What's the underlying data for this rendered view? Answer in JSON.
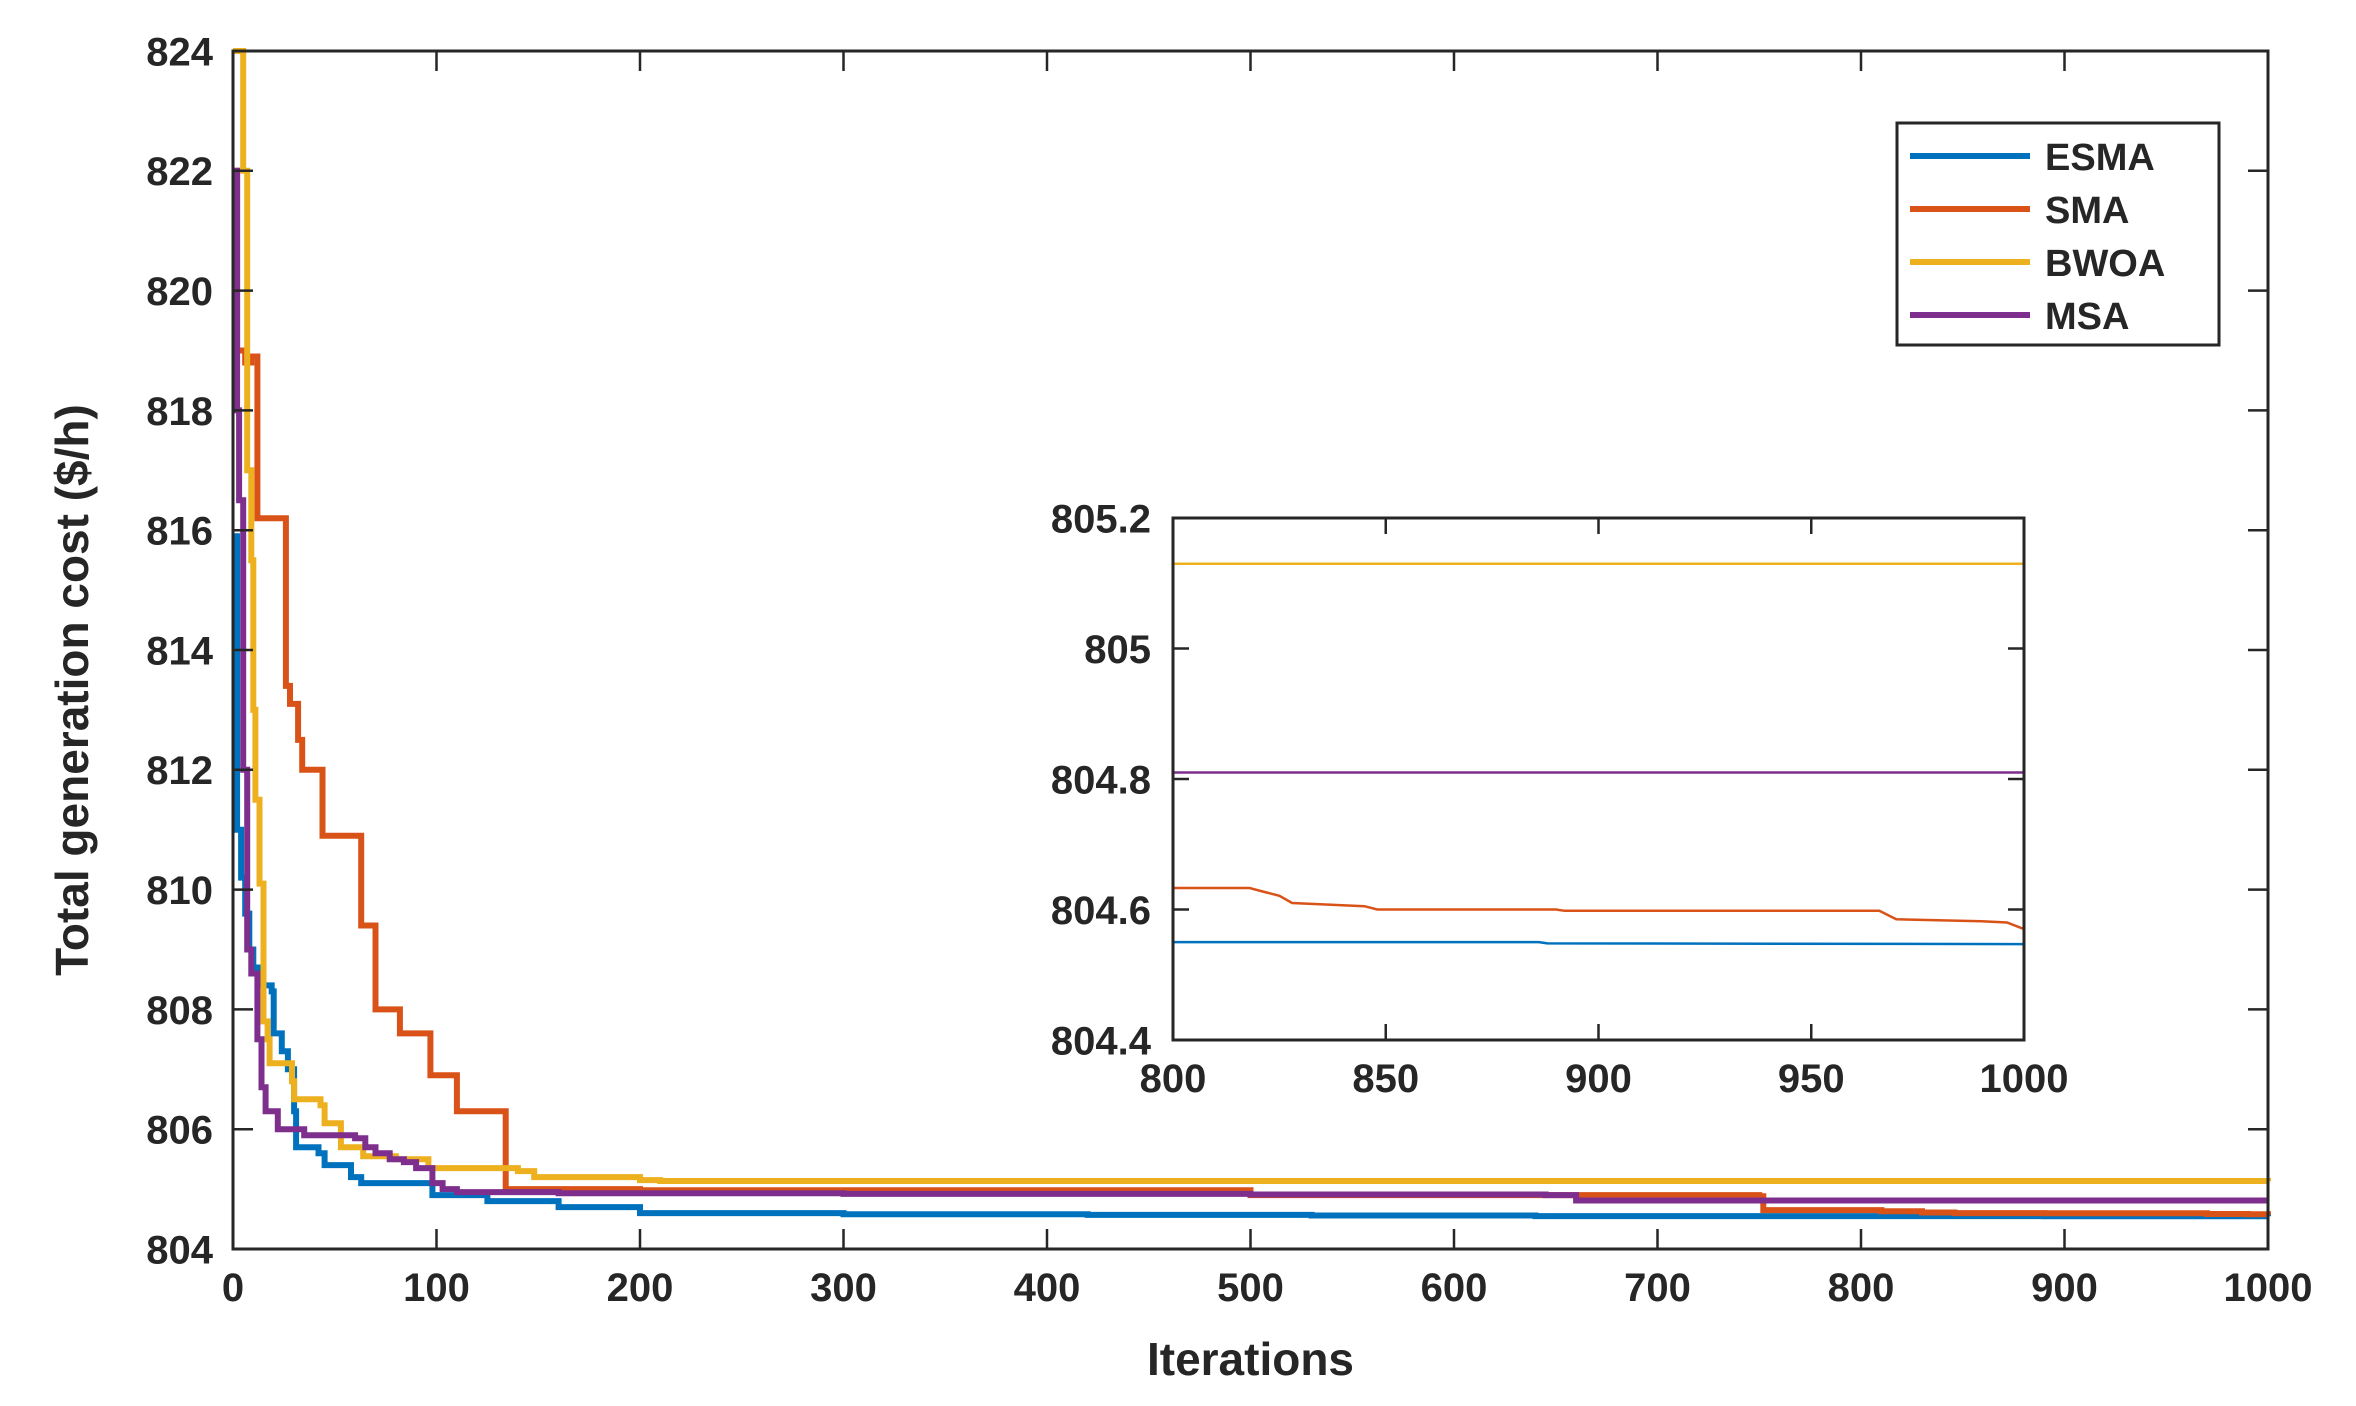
{
  "chart_data": [
    {
      "type": "line",
      "xlabel": "Iterations",
      "ylabel": "Total generation cost ($/h)",
      "xlim": [
        0,
        1000
      ],
      "ylim": [
        804,
        824
      ],
      "xticks": [
        0,
        100,
        200,
        300,
        400,
        500,
        600,
        700,
        800,
        900,
        1000
      ],
      "xtick_labels": [
        "0",
        "100",
        "200",
        "300",
        "400",
        "500",
        "600",
        "700",
        "800",
        "900",
        "1000"
      ],
      "yticks": [
        804,
        806,
        808,
        810,
        812,
        814,
        816,
        818,
        820,
        822,
        824
      ],
      "ytick_labels": [
        "804",
        "806",
        "808",
        "810",
        "812",
        "814",
        "816",
        "818",
        "820",
        "822",
        "824"
      ],
      "grid": false,
      "legend_position": "top-right",
      "series": [
        {
          "name": "ESMA",
          "color": "#0072BD",
          "points": [
            [
              0,
              815.6
            ],
            [
              1,
              815.9
            ],
            [
              2,
              811.0
            ],
            [
              4,
              810.2
            ],
            [
              6,
              809.6
            ],
            [
              8,
              809.0
            ],
            [
              10,
              808.7
            ],
            [
              13,
              808.4
            ],
            [
              19,
              808.3
            ],
            [
              20,
              807.6
            ],
            [
              24,
              807.3
            ],
            [
              27,
              807.0
            ],
            [
              30,
              806.3
            ],
            [
              31,
              805.7
            ],
            [
              42,
              805.6
            ],
            [
              45,
              805.4
            ],
            [
              58,
              805.2
            ],
            [
              63,
              805.1
            ],
            [
              98,
              804.9
            ],
            [
              125,
              804.8
            ],
            [
              160,
              804.7
            ],
            [
              200,
              804.6
            ],
            [
              300,
              804.58
            ],
            [
              420,
              804.57
            ],
            [
              530,
              804.56
            ],
            [
              640,
              804.55
            ],
            [
              890,
              804.548
            ],
            [
              1000,
              804.546
            ]
          ]
        },
        {
          "name": "SMA",
          "color": "#D95319",
          "points": [
            [
              0,
              822.0
            ],
            [
              2,
              819.0
            ],
            [
              6,
              818.8
            ],
            [
              9,
              818.9
            ],
            [
              11,
              818.9
            ],
            [
              12,
              816.2
            ],
            [
              25,
              816.2
            ],
            [
              26,
              813.4
            ],
            [
              28,
              813.1
            ],
            [
              32,
              812.5
            ],
            [
              34,
              812.0
            ],
            [
              42,
              812.0
            ],
            [
              44,
              810.9
            ],
            [
              60,
              810.9
            ],
            [
              63,
              809.4
            ],
            [
              68,
              809.4
            ],
            [
              70,
              808.0
            ],
            [
              80,
              808.0
            ],
            [
              82,
              807.6
            ],
            [
              95,
              807.6
            ],
            [
              97,
              806.9
            ],
            [
              108,
              806.9
            ],
            [
              110,
              806.3
            ],
            [
              132,
              806.3
            ],
            [
              134,
              805.0
            ],
            [
              200,
              804.98
            ],
            [
              500,
              804.9
            ],
            [
              750,
              804.88
            ],
            [
              752,
              804.65
            ],
            [
              810,
              804.63
            ],
            [
              820,
              804.63
            ],
            [
              830,
              804.61
            ],
            [
              846,
              804.6
            ],
            [
              890,
              804.598
            ],
            [
              968,
              804.597
            ],
            [
              970,
              804.585
            ],
            [
              990,
              804.58
            ],
            [
              1000,
              804.57
            ]
          ]
        },
        {
          "name": "BWOA",
          "color": "#EDB120",
          "points": [
            [
              0,
              824.0
            ],
            [
              3,
              824.0
            ],
            [
              5,
              822.0
            ],
            [
              7,
              817.0
            ],
            [
              9,
              815.5
            ],
            [
              10,
              813.0
            ],
            [
              11,
              811.5
            ],
            [
              13,
              810.1
            ],
            [
              15,
              807.8
            ],
            [
              17,
              807.5
            ],
            [
              18,
              807.1
            ],
            [
              26,
              807.1
            ],
            [
              29,
              806.8
            ],
            [
              30,
              806.5
            ],
            [
              43,
              806.4
            ],
            [
              45,
              806.1
            ],
            [
              52,
              806.1
            ],
            [
              53,
              805.7
            ],
            [
              60,
              805.7
            ],
            [
              64,
              805.55
            ],
            [
              80,
              805.5
            ],
            [
              96,
              805.35
            ],
            [
              140,
              805.3
            ],
            [
              148,
              805.2
            ],
            [
              200,
              805.15
            ],
            [
              210,
              805.135
            ],
            [
              1000,
              805.13
            ]
          ]
        },
        {
          "name": "MSA",
          "color": "#7E2F8E",
          "points": [
            [
              0,
              821.0
            ],
            [
              1,
              822.0
            ],
            [
              2,
              818.0
            ],
            [
              3,
              816.5
            ],
            [
              5,
              812.0
            ],
            [
              7,
              809.0
            ],
            [
              9,
              808.6
            ],
            [
              12,
              807.5
            ],
            [
              14,
              806.7
            ],
            [
              16,
              806.3
            ],
            [
              22,
              806.0
            ],
            [
              35,
              805.9
            ],
            [
              60,
              805.85
            ],
            [
              65,
              805.7
            ],
            [
              70,
              805.6
            ],
            [
              77,
              805.5
            ],
            [
              84,
              805.45
            ],
            [
              90,
              805.35
            ],
            [
              98,
              805.1
            ],
            [
              103,
              805.0
            ],
            [
              110,
              804.95
            ],
            [
              160,
              804.93
            ],
            [
              300,
              804.92
            ],
            [
              500,
              804.91
            ],
            [
              645,
              804.9
            ],
            [
              660,
              804.81
            ],
            [
              1000,
              804.81
            ]
          ]
        }
      ]
    },
    {
      "type": "line",
      "inset": true,
      "xlim": [
        800,
        1000
      ],
      "ylim": [
        804.4,
        805.2
      ],
      "xticks": [
        800,
        850,
        900,
        950,
        1000
      ],
      "xtick_labels": [
        "800",
        "850",
        "900",
        "950",
        "1000"
      ],
      "yticks": [
        804.4,
        804.6,
        804.8,
        805,
        805.2
      ],
      "ytick_labels": [
        "804.4",
        "804.6",
        "804.8",
        "805",
        "805.2"
      ],
      "grid": false,
      "series": [
        {
          "color": "#0072BD",
          "points": [
            [
              800,
              804.55
            ],
            [
              886,
              804.55
            ],
            [
              888,
              804.548
            ],
            [
              1000,
              804.547
            ]
          ]
        },
        {
          "color": "#D95319",
          "points": [
            [
              800,
              804.633
            ],
            [
              818,
              804.633
            ],
            [
              822,
              804.626
            ],
            [
              825,
              804.621
            ],
            [
              828,
              804.61
            ],
            [
              845,
              804.605
            ],
            [
              848,
              804.6
            ],
            [
              890,
              804.6
            ],
            [
              892,
              804.598
            ],
            [
              966,
              804.598
            ],
            [
              970,
              804.585
            ],
            [
              990,
              804.582
            ],
            [
              996,
              804.58
            ],
            [
              1000,
              804.57
            ]
          ]
        },
        {
          "color": "#EDB120",
          "points": [
            [
              800,
              805.13
            ],
            [
              1000,
              805.13
            ]
          ]
        },
        {
          "color": "#7E2F8E",
          "points": [
            [
              800,
              804.81
            ],
            [
              1000,
              804.81
            ]
          ]
        }
      ]
    }
  ]
}
